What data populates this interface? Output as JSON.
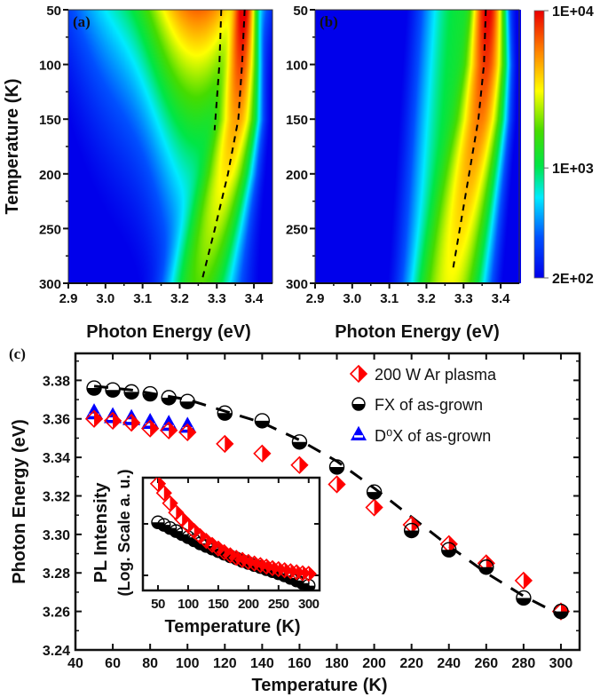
{
  "panels": {
    "a": {
      "label": "(a)"
    },
    "b": {
      "label": "(b)"
    },
    "c": {
      "label": "(c)"
    }
  },
  "colorbar": {
    "scale": "log",
    "colormap": "jet",
    "range": [
      200,
      10000
    ],
    "ticks": [
      {
        "value": 10000,
        "label": "1E+04"
      },
      {
        "value": 1000,
        "label": "1E+03"
      },
      {
        "value": 200,
        "label": "2E+02"
      }
    ]
  },
  "chart_data": [
    {
      "id": "a",
      "type": "heatmap",
      "xlabel": "Photon Energy (eV)",
      "ylabel": "Temperature (K)",
      "xlim": [
        2.9,
        3.45
      ],
      "ylim": [
        300,
        50
      ],
      "xticks": [
        "2.9",
        "3.0",
        "3.1",
        "3.2",
        "3.3",
        "3.4"
      ],
      "yticks": [
        "50",
        "100",
        "150",
        "200",
        "250",
        "300"
      ],
      "dashed_lines": [
        [
          [
            3.312,
            50
          ],
          [
            3.307,
            100
          ],
          [
            3.294,
            160
          ]
        ],
        [
          [
            3.375,
            50
          ],
          [
            3.368,
            100
          ],
          [
            3.358,
            150
          ],
          [
            3.33,
            200
          ],
          [
            3.295,
            250
          ],
          [
            3.258,
            300
          ]
        ]
      ]
    },
    {
      "id": "b",
      "type": "heatmap",
      "xlabel": "Photon Energy (eV)",
      "ylabel": "",
      "xlim": [
        2.9,
        3.45
      ],
      "ylim": [
        300,
        50
      ],
      "xticks": [
        "2.9",
        "3.0",
        "3.1",
        "3.2",
        "3.3",
        "3.4"
      ],
      "yticks": [
        "50",
        "100",
        "150",
        "200",
        "250",
        "300"
      ],
      "dashed_lines": [
        [
          [
            3.36,
            50
          ],
          [
            3.355,
            100
          ],
          [
            3.34,
            150
          ],
          [
            3.315,
            200
          ],
          [
            3.29,
            250
          ],
          [
            3.27,
            290
          ]
        ]
      ]
    },
    {
      "id": "c",
      "type": "scatter",
      "xlabel": "Temperature (K)",
      "ylabel": "Photon Energy (eV)",
      "xlim": [
        40,
        310
      ],
      "ylim": [
        3.24,
        3.394
      ],
      "xticks": [
        "40",
        "60",
        "80",
        "100",
        "120",
        "140",
        "160",
        "180",
        "200",
        "220",
        "240",
        "260",
        "280",
        "300"
      ],
      "yticks": [
        "3.24",
        "3.26",
        "3.28",
        "3.30",
        "3.32",
        "3.34",
        "3.36",
        "3.38"
      ],
      "legend_position": "top-right",
      "series": [
        {
          "name": "200 W Ar plasma",
          "marker": "half-filled-diamond",
          "color": "#ff0000",
          "x": [
            50,
            60,
            70,
            80,
            90,
            100,
            120,
            140,
            160,
            180,
            200,
            220,
            240,
            260,
            280,
            300
          ],
          "y": [
            3.36,
            3.359,
            3.358,
            3.355,
            3.354,
            3.353,
            3.347,
            3.342,
            3.336,
            3.326,
            3.314,
            3.305,
            3.295,
            3.285,
            3.276,
            3.26
          ]
        },
        {
          "name": "FX of as-grown",
          "marker": "half-filled-circle",
          "color": "#000000",
          "x": [
            50,
            60,
            70,
            80,
            90,
            100,
            120,
            140,
            160,
            180,
            200,
            220,
            240,
            260,
            280,
            300
          ],
          "y": [
            3.376,
            3.375,
            3.374,
            3.373,
            3.371,
            3.369,
            3.363,
            3.359,
            3.348,
            3.335,
            3.322,
            3.302,
            3.292,
            3.283,
            3.267,
            3.26
          ]
        },
        {
          "name": "D⁰X of as-grown",
          "marker": "half-filled-triangle",
          "color": "#0000ff",
          "x": [
            50,
            60,
            70,
            80,
            90,
            100
          ],
          "y": [
            3.362,
            3.36,
            3.359,
            3.357,
            3.356,
            3.355
          ]
        }
      ],
      "fit_line": {
        "style": "dashed",
        "x": [
          50,
          70,
          100,
          120,
          140,
          160,
          180,
          200,
          220,
          240,
          260,
          280,
          300
        ],
        "y": [
          3.377,
          3.375,
          3.37,
          3.364,
          3.358,
          3.349,
          3.338,
          3.324,
          3.309,
          3.294,
          3.28,
          3.268,
          3.258
        ]
      }
    },
    {
      "id": "c-inset",
      "type": "scatter",
      "xlabel": "Temperature (K)",
      "ylabel_lines": [
        "PL Intensity",
        "(Log. Scale a. u.)"
      ],
      "yscale": "log",
      "xlim": [
        25,
        318
      ],
      "xticks": [
        "50",
        "100",
        "150",
        "200",
        "250",
        "300"
      ],
      "ylim_decades": [
        -0.3,
        2.0
      ],
      "series": [
        {
          "marker": "half-filled-diamond",
          "color": "#ff0000",
          "x": [
            50,
            60,
            70,
            80,
            90,
            100,
            110,
            120,
            130,
            140,
            150,
            160,
            170,
            180,
            190,
            200,
            210,
            220,
            230,
            240,
            250,
            260,
            270,
            280,
            290,
            300
          ],
          "log10_y": [
            1.78,
            1.6,
            1.4,
            1.22,
            1.09,
            0.97,
            0.86,
            0.76,
            0.67,
            0.59,
            0.52,
            0.45,
            0.39,
            0.34,
            0.3,
            0.26,
            0.23,
            0.2,
            0.17,
            0.14,
            0.12,
            0.1,
            0.08,
            0.06,
            0.04,
            0.03
          ]
        },
        {
          "marker": "half-filled-circle",
          "color": "#000000",
          "x": [
            50,
            60,
            70,
            80,
            90,
            100,
            110,
            120,
            130,
            140,
            150,
            160,
            170,
            180,
            190,
            200,
            210,
            220,
            230,
            240,
            250,
            260,
            270,
            280,
            290,
            300
          ],
          "log10_y": [
            1.03,
            0.98,
            0.92,
            0.86,
            0.8,
            0.74,
            0.68,
            0.62,
            0.57,
            0.52,
            0.47,
            0.42,
            0.37,
            0.33,
            0.28,
            0.24,
            0.2,
            0.16,
            0.12,
            0.08,
            0.04,
            0.0,
            -0.05,
            -0.1,
            -0.15,
            -0.2
          ]
        }
      ]
    }
  ]
}
